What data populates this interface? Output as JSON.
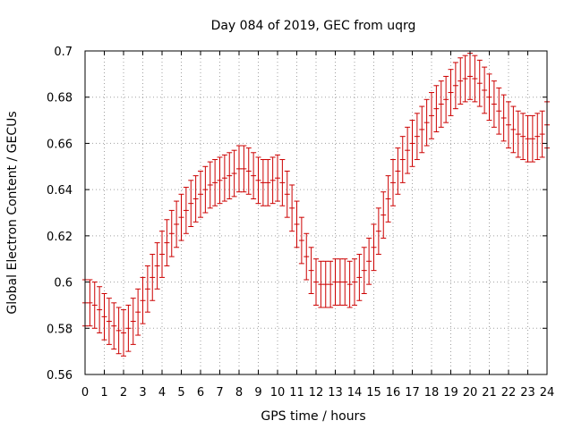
{
  "chart_data": {
    "type": "errorbar",
    "title": "Day 084 of 2019, GEC from uqrg",
    "xlabel": "GPS time / hours",
    "ylabel": "Global Electron Content / GECUs",
    "xlim": [
      0,
      24
    ],
    "ylim": [
      0.56,
      0.7
    ],
    "grid": true,
    "x_ticks": [
      0,
      1,
      2,
      3,
      4,
      5,
      6,
      7,
      8,
      9,
      10,
      11,
      12,
      13,
      14,
      15,
      16,
      17,
      18,
      19,
      20,
      21,
      22,
      23,
      24
    ],
    "y_ticks": [
      0.56,
      0.58,
      0.6,
      0.62,
      0.64,
      0.66,
      0.68,
      0.7
    ],
    "x_tick_labels": [
      "0",
      "1",
      "2",
      "3",
      "4",
      "5",
      "6",
      "7",
      "8",
      "9",
      "10",
      "11",
      "12",
      "13",
      "14",
      "15",
      "16",
      "17",
      "18",
      "19",
      "20",
      "21",
      "22",
      "23",
      "24"
    ],
    "y_tick_labels": [
      "0.56",
      "0.58",
      "0.6",
      "0.62",
      "0.64",
      "0.66",
      "0.68",
      "0.7"
    ],
    "error": 0.01,
    "series": [
      {
        "name": "GEC",
        "color": "#cc0000",
        "x": [
          0,
          0.25,
          0.5,
          0.75,
          1,
          1.25,
          1.5,
          1.75,
          2,
          2.25,
          2.5,
          2.75,
          3,
          3.25,
          3.5,
          3.75,
          4,
          4.25,
          4.5,
          4.75,
          5,
          5.25,
          5.5,
          5.75,
          6,
          6.25,
          6.5,
          6.75,
          7,
          7.25,
          7.5,
          7.75,
          8,
          8.25,
          8.5,
          8.75,
          9,
          9.25,
          9.5,
          9.75,
          10,
          10.25,
          10.5,
          10.75,
          11,
          11.25,
          11.5,
          11.75,
          12,
          12.25,
          12.5,
          12.75,
          13,
          13.25,
          13.5,
          13.75,
          14,
          14.25,
          14.5,
          14.75,
          15,
          15.25,
          15.5,
          15.75,
          16,
          16.25,
          16.5,
          16.75,
          17,
          17.25,
          17.5,
          17.75,
          18,
          18.25,
          18.5,
          18.75,
          19,
          19.25,
          19.5,
          19.75,
          20,
          20.25,
          20.5,
          20.75,
          21,
          21.25,
          21.5,
          21.75,
          22,
          22.25,
          22.5,
          22.75,
          23,
          23.25,
          23.5,
          23.75,
          24
        ],
        "y": [
          0.591,
          0.591,
          0.59,
          0.588,
          0.585,
          0.583,
          0.581,
          0.579,
          0.578,
          0.58,
          0.583,
          0.587,
          0.592,
          0.597,
          0.602,
          0.607,
          0.612,
          0.617,
          0.621,
          0.625,
          0.628,
          0.631,
          0.634,
          0.636,
          0.638,
          0.64,
          0.642,
          0.643,
          0.644,
          0.645,
          0.646,
          0.647,
          0.649,
          0.649,
          0.648,
          0.646,
          0.644,
          0.643,
          0.643,
          0.644,
          0.645,
          0.643,
          0.638,
          0.632,
          0.625,
          0.618,
          0.611,
          0.605,
          0.6,
          0.599,
          0.599,
          0.599,
          0.6,
          0.6,
          0.6,
          0.599,
          0.6,
          0.602,
          0.605,
          0.609,
          0.615,
          0.622,
          0.629,
          0.636,
          0.643,
          0.648,
          0.653,
          0.657,
          0.66,
          0.663,
          0.666,
          0.669,
          0.672,
          0.675,
          0.677,
          0.679,
          0.682,
          0.685,
          0.687,
          0.688,
          0.689,
          0.688,
          0.686,
          0.683,
          0.68,
          0.677,
          0.674,
          0.671,
          0.668,
          0.666,
          0.664,
          0.663,
          0.662,
          0.662,
          0.663,
          0.664,
          0.668
        ]
      }
    ]
  }
}
